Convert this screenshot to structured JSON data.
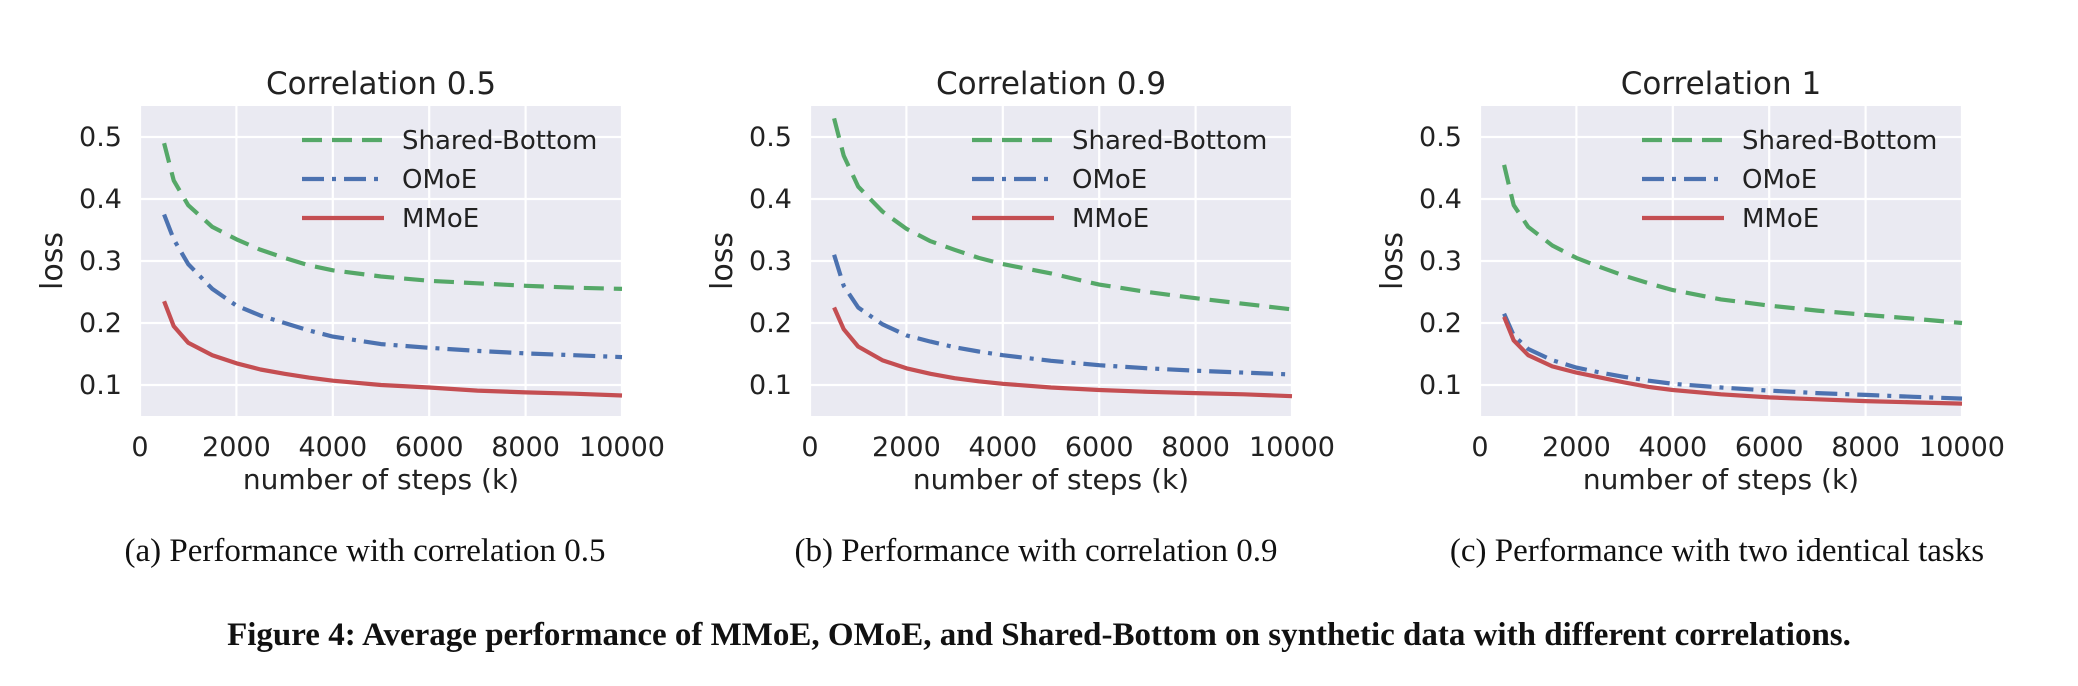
{
  "chart_data": [
    {
      "type": "line",
      "title": "Correlation 0.5",
      "xlabel": "number of steps (k)",
      "ylabel": "loss",
      "xlim": [
        0,
        10000
      ],
      "ylim": [
        0.05,
        0.55
      ],
      "xticks": [
        0,
        2000,
        4000,
        6000,
        8000,
        10000
      ],
      "yticks": [
        0.1,
        0.2,
        0.3,
        0.4,
        0.5
      ],
      "grid": true,
      "legend": "top-right",
      "caption": "(a) Performance with correlation 0.5",
      "series": [
        {
          "name": "Shared-Bottom",
          "color": "#55a868",
          "style": "dashed",
          "x": [
            500,
            700,
            1000,
            1500,
            2000,
            2500,
            3000,
            3500,
            4000,
            5000,
            6000,
            7000,
            8000,
            9000,
            10000
          ],
          "y": [
            0.49,
            0.43,
            0.39,
            0.355,
            0.335,
            0.318,
            0.305,
            0.293,
            0.285,
            0.275,
            0.268,
            0.264,
            0.26,
            0.257,
            0.255
          ]
        },
        {
          "name": "OMoE",
          "color": "#4c72b0",
          "style": "dashdot",
          "x": [
            500,
            700,
            1000,
            1500,
            2000,
            2500,
            3000,
            3500,
            4000,
            5000,
            6000,
            7000,
            8000,
            9000,
            10000
          ],
          "y": [
            0.375,
            0.335,
            0.295,
            0.255,
            0.228,
            0.212,
            0.2,
            0.188,
            0.178,
            0.166,
            0.16,
            0.155,
            0.151,
            0.148,
            0.145
          ]
        },
        {
          "name": "MMoE",
          "color": "#c44e52",
          "style": "solid",
          "x": [
            500,
            700,
            1000,
            1500,
            2000,
            2500,
            3000,
            3500,
            4000,
            5000,
            6000,
            7000,
            8000,
            9000,
            10000
          ],
          "y": [
            0.235,
            0.195,
            0.168,
            0.148,
            0.135,
            0.125,
            0.118,
            0.112,
            0.107,
            0.1,
            0.096,
            0.091,
            0.088,
            0.086,
            0.083
          ]
        }
      ]
    },
    {
      "type": "line",
      "title": "Correlation 0.9",
      "xlabel": "number of steps (k)",
      "ylabel": "loss",
      "xlim": [
        0,
        10000
      ],
      "ylim": [
        0.05,
        0.55
      ],
      "xticks": [
        0,
        2000,
        4000,
        6000,
        8000,
        10000
      ],
      "yticks": [
        0.1,
        0.2,
        0.3,
        0.4,
        0.5
      ],
      "grid": true,
      "legend": "top-right",
      "caption": "(b) Performance with correlation 0.9",
      "series": [
        {
          "name": "Shared-Bottom",
          "color": "#55a868",
          "style": "dashed",
          "x": [
            500,
            700,
            1000,
            1500,
            2000,
            2500,
            3000,
            3500,
            4000,
            5000,
            6000,
            7000,
            8000,
            9000,
            10000
          ],
          "y": [
            0.53,
            0.47,
            0.42,
            0.38,
            0.352,
            0.332,
            0.318,
            0.305,
            0.295,
            0.28,
            0.262,
            0.25,
            0.24,
            0.231,
            0.222
          ]
        },
        {
          "name": "OMoE",
          "color": "#4c72b0",
          "style": "dashdot",
          "x": [
            500,
            700,
            1000,
            1500,
            2000,
            2500,
            3000,
            3500,
            4000,
            5000,
            6000,
            7000,
            8000,
            9000,
            10000
          ],
          "y": [
            0.31,
            0.26,
            0.225,
            0.198,
            0.18,
            0.17,
            0.161,
            0.154,
            0.148,
            0.139,
            0.132,
            0.127,
            0.123,
            0.12,
            0.117
          ]
        },
        {
          "name": "MMoE",
          "color": "#c44e52",
          "style": "solid",
          "x": [
            500,
            700,
            1000,
            1500,
            2000,
            2500,
            3000,
            3500,
            4000,
            5000,
            6000,
            7000,
            8000,
            9000,
            10000
          ],
          "y": [
            0.225,
            0.19,
            0.162,
            0.14,
            0.127,
            0.118,
            0.111,
            0.106,
            0.102,
            0.096,
            0.092,
            0.089,
            0.087,
            0.085,
            0.082
          ]
        }
      ]
    },
    {
      "type": "line",
      "title": "Correlation 1",
      "xlabel": "number of steps (k)",
      "ylabel": "loss",
      "xlim": [
        0,
        10000
      ],
      "ylim": [
        0.05,
        0.55
      ],
      "xticks": [
        0,
        2000,
        4000,
        6000,
        8000,
        10000
      ],
      "yticks": [
        0.1,
        0.2,
        0.3,
        0.4,
        0.5
      ],
      "grid": true,
      "legend": "top-right",
      "caption": "(c) Performance with two identical tasks",
      "series": [
        {
          "name": "Shared-Bottom",
          "color": "#55a868",
          "style": "dashed",
          "x": [
            500,
            700,
            1000,
            1500,
            2000,
            2500,
            3000,
            3500,
            4000,
            5000,
            6000,
            7000,
            8000,
            9000,
            10000
          ],
          "y": [
            0.455,
            0.39,
            0.355,
            0.325,
            0.305,
            0.29,
            0.276,
            0.264,
            0.253,
            0.238,
            0.228,
            0.22,
            0.213,
            0.207,
            0.2
          ]
        },
        {
          "name": "OMoE",
          "color": "#4c72b0",
          "style": "dashdot",
          "x": [
            500,
            700,
            1000,
            1500,
            2000,
            2500,
            3000,
            3500,
            4000,
            5000,
            6000,
            7000,
            8000,
            9000,
            10000
          ],
          "y": [
            0.215,
            0.18,
            0.158,
            0.14,
            0.128,
            0.12,
            0.113,
            0.107,
            0.102,
            0.096,
            0.091,
            0.087,
            0.084,
            0.081,
            0.078
          ]
        },
        {
          "name": "MMoE",
          "color": "#c44e52",
          "style": "solid",
          "x": [
            500,
            700,
            1000,
            1500,
            2000,
            2500,
            3000,
            3500,
            4000,
            5000,
            6000,
            7000,
            8000,
            9000,
            10000
          ],
          "y": [
            0.21,
            0.172,
            0.148,
            0.13,
            0.12,
            0.112,
            0.104,
            0.097,
            0.092,
            0.085,
            0.08,
            0.077,
            0.074,
            0.072,
            0.07
          ]
        }
      ]
    }
  ],
  "figure_caption": "Figure 4: Average performance of MMoE, OMoE, and Shared-Bottom on synthetic data with different correlations."
}
